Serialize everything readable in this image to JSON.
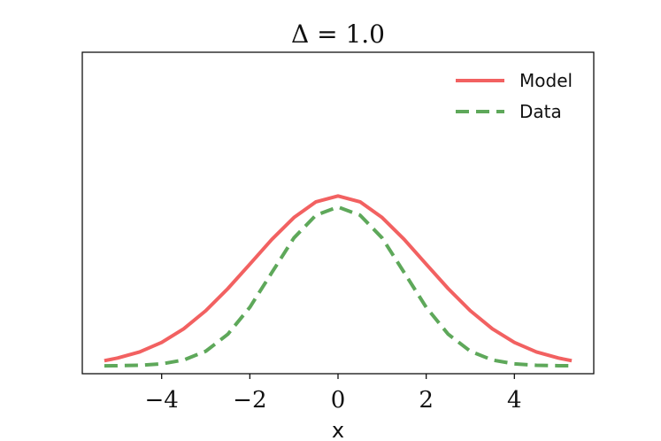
{
  "chart_data": {
    "type": "line",
    "title": "Δ = 1.0",
    "xlabel": "x",
    "ylabel": "",
    "xlim": [
      -5.8,
      5.8
    ],
    "ylim": [
      -0.009,
      0.357
    ],
    "xticks": [
      -4,
      -2,
      0,
      2,
      4
    ],
    "xtick_labels": [
      "−4",
      "−2",
      "0",
      "2",
      "4"
    ],
    "y_tick_labels_shown": false,
    "grid": false,
    "legend": {
      "placement": "top-right",
      "entries": [
        "Model",
        "Data"
      ]
    },
    "series": [
      {
        "name": "Model",
        "color": "#f26161",
        "style": "solid",
        "x": [
          -5.3,
          -5.0,
          -4.5,
          -4.0,
          -3.5,
          -3.0,
          -2.5,
          -2.0,
          -1.5,
          -1.0,
          -0.5,
          0.0,
          0.5,
          1.0,
          1.5,
          2.0,
          2.5,
          3.0,
          3.5,
          4.0,
          4.5,
          5.0,
          5.3
        ],
        "y": [
          0.0058,
          0.0088,
          0.0158,
          0.0266,
          0.0421,
          0.0627,
          0.0878,
          0.1157,
          0.1439,
          0.1688,
          0.1867,
          0.1933,
          0.1867,
          0.1688,
          0.1439,
          0.1157,
          0.0878,
          0.0627,
          0.0421,
          0.0266,
          0.0158,
          0.0088,
          0.0058
        ]
      },
      {
        "name": "Data",
        "color": "#5ea85a",
        "style": "dashed",
        "x": [
          -5.3,
          -5.0,
          -4.5,
          -4.0,
          -3.5,
          -3.0,
          -2.5,
          -2.0,
          -1.5,
          -1.0,
          -0.5,
          0.0,
          0.5,
          1.0,
          1.5,
          2.0,
          2.5,
          3.0,
          3.5,
          4.0,
          4.5,
          5.0,
          5.3
        ],
        "y": [
          0.0,
          0.0001,
          0.0006,
          0.0022,
          0.0066,
          0.0166,
          0.0359,
          0.0666,
          0.1062,
          0.1456,
          0.1715,
          0.1808,
          0.1715,
          0.1456,
          0.1062,
          0.0666,
          0.0359,
          0.0166,
          0.0066,
          0.0022,
          0.0006,
          0.0001,
          0.0
        ]
      }
    ]
  }
}
